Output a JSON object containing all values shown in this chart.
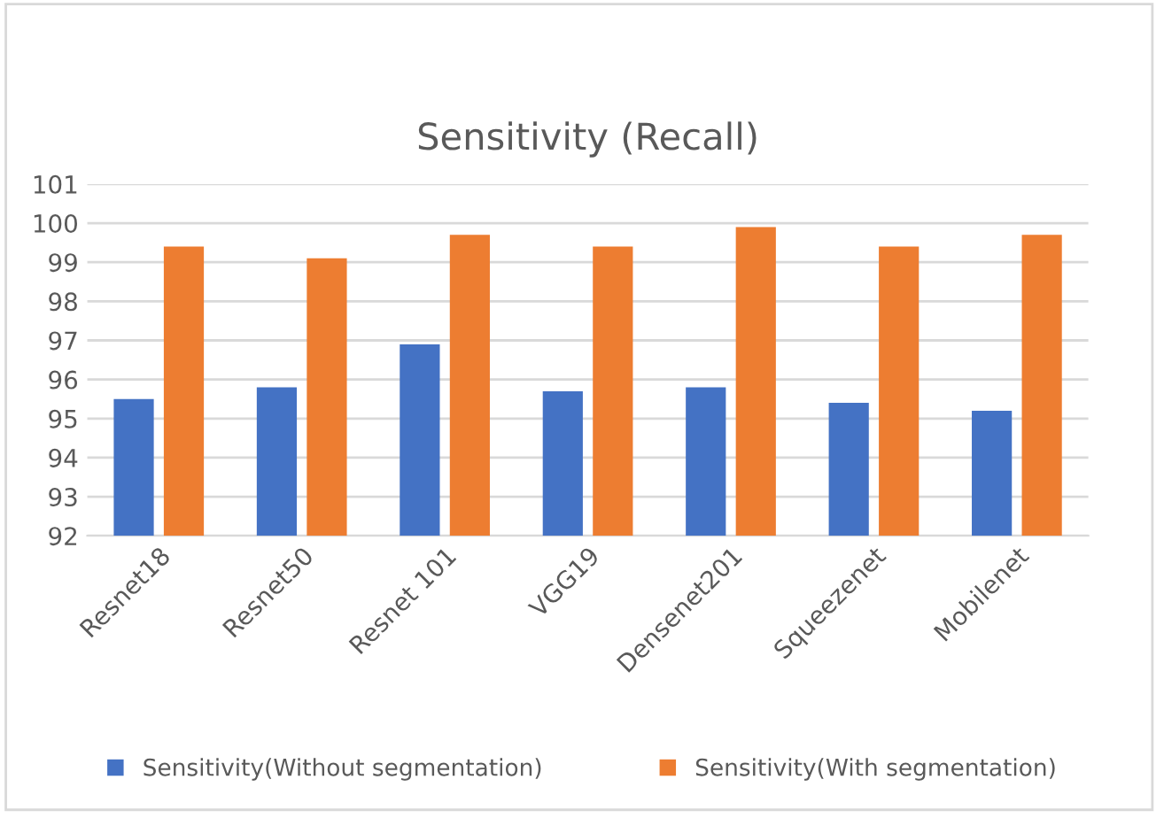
{
  "chart_data": {
    "type": "bar",
    "title": "Sensitivity (Recall)",
    "categories": [
      "Resnet18",
      "Resnet50",
      "Resnet 101",
      "VGG19",
      "Densenet201",
      "Squeezenet",
      "Mobilenet"
    ],
    "series": [
      {
        "name": "Sensitivity(Without segmentation)",
        "color": "#4472c4",
        "values": [
          95.5,
          95.8,
          96.9,
          95.7,
          95.8,
          95.4,
          95.2
        ]
      },
      {
        "name": "Sensitivity(With segmentation)",
        "color": "#ed7d31",
        "values": [
          99.4,
          99.1,
          99.7,
          99.4,
          99.9,
          99.4,
          99.7
        ]
      }
    ],
    "ylim": [
      92,
      101
    ],
    "yticks": [
      92,
      93,
      94,
      95,
      96,
      97,
      98,
      99,
      100,
      101
    ],
    "grid": "y",
    "legend": "bottom"
  }
}
